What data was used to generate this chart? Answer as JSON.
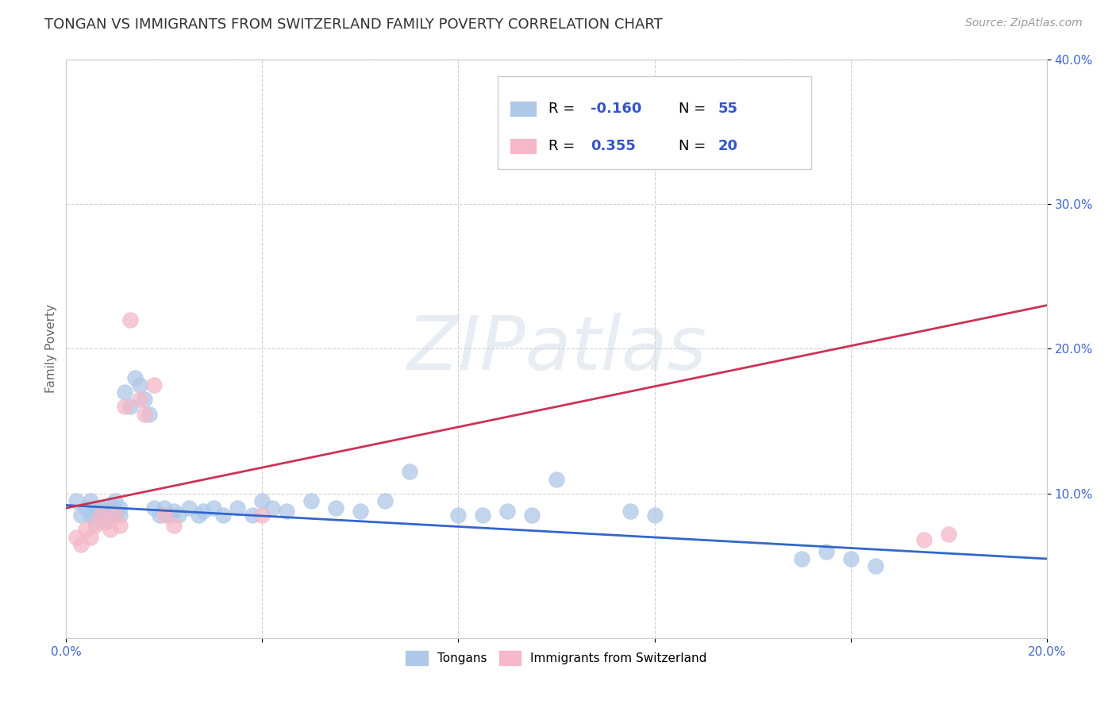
{
  "title": "TONGAN VS IMMIGRANTS FROM SWITZERLAND FAMILY POVERTY CORRELATION CHART",
  "source": "Source: ZipAtlas.com",
  "ylabel": "Family Poverty",
  "watermark": "ZIPatlas",
  "legend_blue_r": "-0.160",
  "legend_blue_n": "55",
  "legend_pink_r": "0.355",
  "legend_pink_n": "20",
  "xlim": [
    0.0,
    0.2
  ],
  "ylim": [
    0.0,
    0.4
  ],
  "xticks": [
    0.0,
    0.04,
    0.08,
    0.12,
    0.16,
    0.2
  ],
  "yticks": [
    0.1,
    0.2,
    0.3,
    0.4
  ],
  "xtick_labels_show": [
    "0.0%",
    "20.0%"
  ],
  "ytick_labels": [
    "10.0%",
    "20.0%",
    "30.0%",
    "40.0%"
  ],
  "blue_scatter_x": [
    0.002,
    0.003,
    0.004,
    0.005,
    0.005,
    0.006,
    0.006,
    0.007,
    0.007,
    0.008,
    0.008,
    0.009,
    0.009,
    0.01,
    0.01,
    0.011,
    0.011,
    0.012,
    0.013,
    0.014,
    0.015,
    0.016,
    0.017,
    0.018,
    0.019,
    0.02,
    0.021,
    0.022,
    0.023,
    0.025,
    0.027,
    0.028,
    0.03,
    0.032,
    0.035,
    0.038,
    0.04,
    0.042,
    0.045,
    0.05,
    0.055,
    0.06,
    0.065,
    0.07,
    0.08,
    0.085,
    0.09,
    0.095,
    0.1,
    0.115,
    0.12,
    0.15,
    0.155,
    0.16,
    0.165
  ],
  "blue_scatter_y": [
    0.095,
    0.085,
    0.09,
    0.095,
    0.085,
    0.09,
    0.08,
    0.085,
    0.09,
    0.082,
    0.088,
    0.085,
    0.092,
    0.088,
    0.095,
    0.085,
    0.09,
    0.17,
    0.16,
    0.18,
    0.175,
    0.165,
    0.155,
    0.09,
    0.085,
    0.09,
    0.085,
    0.088,
    0.085,
    0.09,
    0.085,
    0.088,
    0.09,
    0.085,
    0.09,
    0.085,
    0.095,
    0.09,
    0.088,
    0.095,
    0.09,
    0.088,
    0.095,
    0.115,
    0.085,
    0.085,
    0.088,
    0.085,
    0.11,
    0.088,
    0.085,
    0.055,
    0.06,
    0.055,
    0.05
  ],
  "pink_scatter_x": [
    0.002,
    0.003,
    0.004,
    0.005,
    0.006,
    0.007,
    0.008,
    0.009,
    0.01,
    0.011,
    0.012,
    0.013,
    0.015,
    0.016,
    0.018,
    0.02,
    0.022,
    0.04,
    0.175,
    0.18
  ],
  "pink_scatter_y": [
    0.07,
    0.065,
    0.075,
    0.07,
    0.078,
    0.085,
    0.08,
    0.075,
    0.085,
    0.078,
    0.16,
    0.22,
    0.165,
    0.155,
    0.175,
    0.085,
    0.078,
    0.085,
    0.068,
    0.072
  ],
  "blue_line_x": [
    0.0,
    0.2
  ],
  "blue_line_y": [
    0.092,
    0.055
  ],
  "pink_line_x": [
    0.0,
    0.2
  ],
  "pink_line_y": [
    0.09,
    0.23
  ],
  "blue_color": "#aec8e8",
  "pink_color": "#f4b8c8",
  "blue_line_color": "#3366cc",
  "pink_line_color": "#cc3355",
  "bg_color": "#ffffff",
  "grid_color": "#cccccc",
  "title_color": "#333333",
  "title_fontsize": 13,
  "source_fontsize": 10,
  "ylabel_fontsize": 11,
  "tick_fontsize": 11,
  "tick_color": "#4466cc"
}
